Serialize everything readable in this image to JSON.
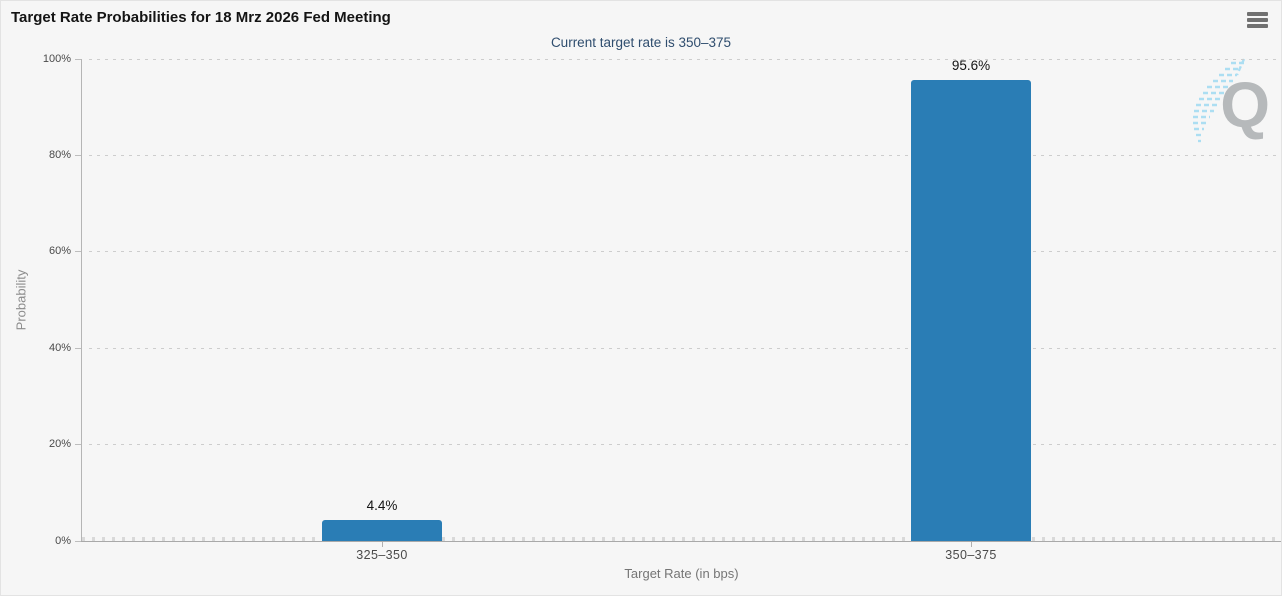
{
  "header": {
    "title": "Target Rate Probabilities for 18 Mrz 2026 Fed Meeting",
    "subtitle": "Current target rate is 350–375",
    "menu_icon": "hamburger-menu-icon"
  },
  "chart_data": {
    "type": "bar",
    "title": "Target Rate Probabilities for 18 Mrz 2026 Fed Meeting",
    "subtitle": "Current target rate is 350–375",
    "categories": [
      "325–350",
      "350–375"
    ],
    "values": [
      4.4,
      95.6
    ],
    "value_labels": [
      "4.4%",
      "95.6%"
    ],
    "xlabel": "Target Rate (in bps)",
    "ylabel": "Probability",
    "ylim": [
      0,
      100
    ],
    "yticks": [
      0,
      20,
      40,
      60,
      80,
      100
    ],
    "ytick_labels": [
      "0%",
      "20%",
      "40%",
      "60%",
      "80%",
      "100%"
    ],
    "grid": "dotted-horizontal",
    "legend": "none",
    "bar_color": "#2a7db5"
  },
  "colors": {
    "background": "#f6f6f6",
    "bar": "#2a7db5",
    "subtitle_text": "#2f4d6e",
    "axis_line": "#aaaaaa",
    "grid_dots": "#cdcdcd",
    "tick_label": "#4a4a4a",
    "axis_title": "#8c8c8c",
    "menu_icon": "#717171",
    "logo_gray": "#b6b9bb",
    "logo_blue": "#a5dcf2"
  },
  "logo": {
    "letter": "Q"
  }
}
